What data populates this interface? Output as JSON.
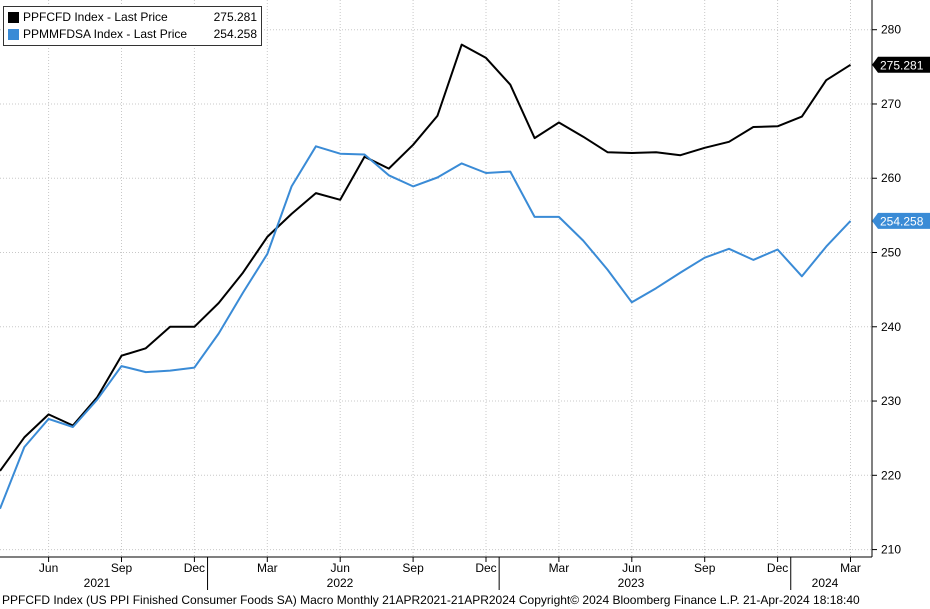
{
  "chart_data": {
    "type": "line",
    "series": [
      {
        "name": "PPFCFD Index - Last Price",
        "last_value": "275.281",
        "color": "#000000",
        "x": [
          "2021-04",
          "2021-05",
          "2021-06",
          "2021-07",
          "2021-08",
          "2021-09",
          "2021-10",
          "2021-11",
          "2021-12",
          "2022-01",
          "2022-02",
          "2022-03",
          "2022-04",
          "2022-05",
          "2022-06",
          "2022-07",
          "2022-08",
          "2022-09",
          "2022-10",
          "2022-11",
          "2022-12",
          "2023-01",
          "2023-02",
          "2023-03",
          "2023-04",
          "2023-05",
          "2023-06",
          "2023-07",
          "2023-08",
          "2023-09",
          "2023-10",
          "2023-11",
          "2023-12",
          "2024-01",
          "2024-02",
          "2024-03"
        ],
        "values": [
          220.6,
          225.1,
          228.2,
          226.7,
          230.5,
          236.1,
          237.1,
          240.0,
          240.0,
          243.2,
          247.3,
          252.1,
          255.2,
          258.0,
          257.1,
          262.9,
          261.3,
          264.5,
          268.4,
          278.0,
          276.2,
          272.6,
          265.4,
          267.5,
          265.6,
          263.5,
          263.4,
          263.5,
          263.1,
          264.1,
          264.9,
          266.9,
          267.0,
          268.3,
          273.2,
          275.281
        ]
      },
      {
        "name": "PPMMFDSA Index - Last Price",
        "last_value": "254.258",
        "color": "#3a8bd6",
        "x": [
          "2021-04",
          "2021-05",
          "2021-06",
          "2021-07",
          "2021-08",
          "2021-09",
          "2021-10",
          "2021-11",
          "2021-12",
          "2022-01",
          "2022-02",
          "2022-03",
          "2022-04",
          "2022-05",
          "2022-06",
          "2022-07",
          "2022-08",
          "2022-09",
          "2022-10",
          "2022-11",
          "2022-12",
          "2023-01",
          "2023-02",
          "2023-03",
          "2023-04",
          "2023-05",
          "2023-06",
          "2023-07",
          "2023-08",
          "2023-09",
          "2023-10",
          "2023-11",
          "2023-12",
          "2024-01",
          "2024-02",
          "2024-03"
        ],
        "values": [
          215.5,
          223.8,
          227.6,
          226.5,
          230.2,
          234.7,
          233.9,
          234.1,
          234.5,
          239.1,
          244.6,
          249.8,
          258.9,
          264.3,
          263.3,
          263.2,
          260.4,
          258.9,
          260.1,
          262.0,
          260.7,
          260.9,
          254.8,
          254.8,
          251.6,
          247.7,
          243.3,
          245.2,
          247.3,
          249.3,
          250.5,
          249.0,
          250.4,
          246.8,
          250.8,
          254.258
        ]
      }
    ],
    "ylim": [
      209,
      284
    ],
    "y_ticks": [
      "210",
      "220",
      "230",
      "240",
      "250",
      "260",
      "270",
      "280"
    ],
    "x_ticks": [
      "Jun",
      "Sep",
      "Dec",
      "Mar",
      "Jun",
      "Sep",
      "Dec",
      "Mar",
      "Jun",
      "Sep",
      "Dec",
      "Mar"
    ],
    "year_labels": [
      "2021",
      "2022",
      "2023",
      "2024"
    ],
    "grid": true,
    "legend_position": "top-left",
    "axis_position": "right"
  },
  "footer": "PPFCFD Index (US PPI Finished Consumer Foods SA) Macro  Monthly 21APR2021-21APR2024 Copyright© 2024 Bloomberg Finance L.P. 21-Apr-2024 18:18:40"
}
